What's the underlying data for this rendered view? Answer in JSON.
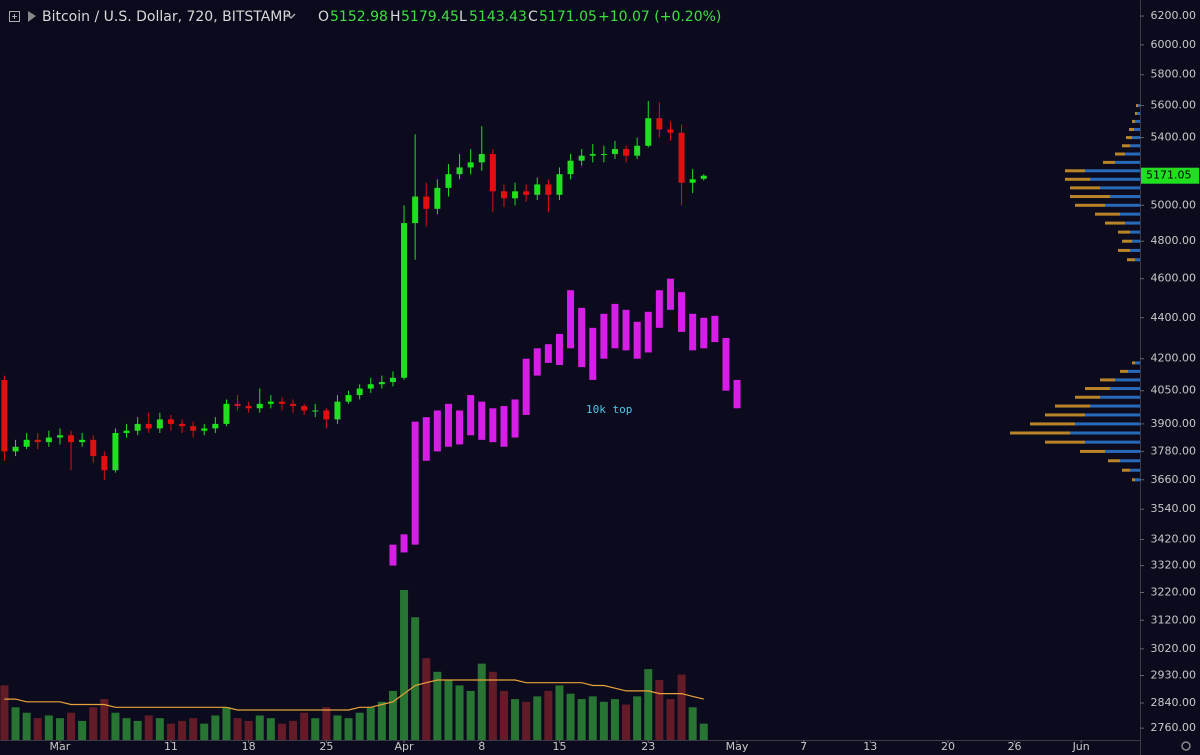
{
  "chart_data": {
    "type": "candlestick",
    "title": "Bitcoin / U.S. Dollar, 720, BITSTAMP",
    "ohlc_labels": [
      "O",
      "H",
      "L",
      "C"
    ],
    "change": "+10.07 (+0.20%)",
    "annotations": [
      "10k top"
    ],
    "log": true,
    "xlim": [
      -5.4,
      97.3
    ],
    "ylim": [
      2723,
      6314
    ],
    "xticks": [
      {
        "value": 0,
        "label": "Mar"
      },
      {
        "value": 10,
        "label": "11"
      },
      {
        "value": 17,
        "label": "18"
      },
      {
        "value": 24,
        "label": "25"
      },
      {
        "value": 31,
        "label": "Apr"
      },
      {
        "value": 38,
        "label": "8"
      },
      {
        "value": 45,
        "label": "15"
      },
      {
        "value": 53,
        "label": "23"
      },
      {
        "value": 61,
        "label": "May"
      },
      {
        "value": 67,
        "label": "7"
      },
      {
        "value": 73,
        "label": "13"
      },
      {
        "value": 80,
        "label": "20"
      },
      {
        "value": 86,
        "label": "26"
      },
      {
        "value": 92,
        "label": "Jun"
      }
    ],
    "yticks": [
      {
        "value": 6200,
        "label": "6200.00"
      },
      {
        "value": 6000,
        "label": "6000.00"
      },
      {
        "value": 5800,
        "label": "5800.00"
      },
      {
        "value": 5600,
        "label": "5600.00"
      },
      {
        "value": 5400,
        "label": "5400.00"
      },
      {
        "value": 5000,
        "label": "5000.00"
      },
      {
        "value": 4800,
        "label": "4800.00"
      },
      {
        "value": 4600,
        "label": "4600.00"
      },
      {
        "value": 4400,
        "label": "4400.00"
      },
      {
        "value": 4200,
        "label": "4200.00"
      },
      {
        "value": 4050,
        "label": "4050.00"
      },
      {
        "value": 3900,
        "label": "3900.00"
      },
      {
        "value": 3780,
        "label": "3780.00"
      },
      {
        "value": 3660,
        "label": "3660.00"
      },
      {
        "value": 3540,
        "label": "3540.00"
      },
      {
        "value": 3420,
        "label": "3420.00"
      },
      {
        "value": 3320,
        "label": "3320.00"
      },
      {
        "value": 3220,
        "label": "3220.00"
      },
      {
        "value": 3120,
        "label": "3120.00"
      },
      {
        "value": 3020,
        "label": "3020.00"
      },
      {
        "value": 2930,
        "label": "2930.00"
      },
      {
        "value": 2840,
        "label": "2840.00"
      },
      {
        "value": 2760,
        "label": "2760.00"
      }
    ],
    "candles": {
      "up_color": "#1fe01f",
      "down_color": "#e01010",
      "x": [
        -5,
        -4,
        -3,
        -2,
        -1,
        0,
        1,
        2,
        3,
        4,
        5,
        6,
        7,
        8,
        9,
        10,
        11,
        12,
        13,
        14,
        15,
        16,
        17,
        18,
        19,
        20,
        21,
        22,
        23,
        24,
        25,
        26,
        27,
        28,
        29,
        30,
        31,
        32,
        33,
        34,
        35,
        36,
        37,
        38,
        39,
        40,
        41,
        42,
        43,
        44,
        45,
        46,
        47,
        48,
        49,
        50,
        51,
        52,
        53,
        54,
        55,
        56,
        57,
        58
      ],
      "open": [
        4100,
        3780,
        3800,
        3830,
        3820,
        3840,
        3850,
        3820,
        3830,
        3760,
        3700,
        3860,
        3870,
        3900,
        3880,
        3920,
        3900,
        3890,
        3870,
        3880,
        3900,
        3990,
        3980,
        3970,
        3990,
        4000,
        3990,
        3980,
        3960,
        3960,
        3920,
        4000,
        4030,
        4060,
        4080,
        4090,
        4110,
        4900,
        5050,
        4980,
        5100,
        5180,
        5220,
        5250,
        5300,
        5080,
        5040,
        5080,
        5060,
        5120,
        5060,
        5180,
        5260,
        5290,
        5300,
        5300,
        5330,
        5290,
        5350,
        5520,
        5450,
        5430,
        5130,
        5152.98
      ],
      "high": [
        4120,
        3830,
        3860,
        3860,
        3870,
        3880,
        3870,
        3860,
        3850,
        3780,
        3880,
        3900,
        3930,
        3950,
        3950,
        3940,
        3920,
        3910,
        3900,
        3930,
        4010,
        4030,
        4000,
        4060,
        4030,
        4020,
        4010,
        3990,
        3990,
        3970,
        4030,
        4050,
        4080,
        4110,
        4120,
        4140,
        5000,
        5420,
        5130,
        5150,
        5240,
        5300,
        5330,
        5470,
        5330,
        5120,
        5130,
        5120,
        5160,
        5150,
        5220,
        5300,
        5330,
        5360,
        5350,
        5380,
        5350,
        5400,
        5630,
        5620,
        5500,
        5480,
        5210,
        5179.45
      ],
      "low": [
        3740,
        3760,
        3790,
        3790,
        3800,
        3810,
        3700,
        3800,
        3730,
        3660,
        3690,
        3840,
        3850,
        3860,
        3860,
        3870,
        3860,
        3840,
        3850,
        3860,
        3890,
        3960,
        3950,
        3950,
        3970,
        3960,
        3950,
        3940,
        3930,
        3880,
        3900,
        3990,
        4010,
        4040,
        4060,
        4070,
        4100,
        4700,
        4880,
        4950,
        5050,
        5150,
        5180,
        5200,
        4960,
        4990,
        5000,
        5020,
        5030,
        4960,
        5030,
        5150,
        5230,
        5250,
        5250,
        5270,
        5250,
        5270,
        5340,
        5400,
        5380,
        5000,
        5070,
        5143.43
      ],
      "close": [
        3780,
        3800,
        3830,
        3820,
        3840,
        3850,
        3820,
        3830,
        3760,
        3700,
        3860,
        3870,
        3900,
        3880,
        3920,
        3900,
        3890,
        3870,
        3880,
        3900,
        3990,
        3980,
        3970,
        3990,
        4000,
        3990,
        3980,
        3960,
        3960,
        3920,
        4000,
        4030,
        4060,
        4080,
        4090,
        4110,
        4900,
        5050,
        4980,
        5100,
        5180,
        5220,
        5250,
        5300,
        5080,
        5040,
        5080,
        5060,
        5120,
        5060,
        5180,
        5260,
        5290,
        5300,
        5300,
        5330,
        5290,
        5350,
        5520,
        5450,
        5430,
        5130,
        5150,
        5171.05
      ]
    },
    "overlay": {
      "color": "#d61ee6",
      "x": [
        30,
        31,
        32,
        33,
        34,
        35,
        36,
        37,
        38,
        39,
        40,
        41,
        42,
        43,
        44,
        45,
        46,
        47,
        48,
        49,
        50,
        51,
        52,
        53,
        54,
        55,
        56,
        57,
        58,
        59,
        60,
        61
      ],
      "high": [
        3400,
        3440,
        3910,
        3930,
        3960,
        3990,
        3960,
        4030,
        4000,
        3970,
        3980,
        4010,
        4200,
        4250,
        4270,
        4320,
        4540,
        4450,
        4350,
        4420,
        4470,
        4440,
        4380,
        4430,
        4540,
        4600,
        4530,
        4420,
        4400,
        4410,
        4300,
        4100
      ],
      "low": [
        3320,
        3370,
        3400,
        3740,
        3780,
        3800,
        3810,
        3850,
        3830,
        3820,
        3800,
        3840,
        3940,
        4120,
        4180,
        4170,
        4250,
        4160,
        4100,
        4200,
        4250,
        4240,
        4200,
        4230,
        4350,
        4440,
        4330,
        4240,
        4250,
        4280,
        4050,
        3970
      ]
    },
    "volume": {
      "up_color": "#2f8f3a",
      "down_color": "#7a1f2c",
      "ma_color": "#e8a23a",
      "values": [
        20,
        12,
        10,
        8,
        9,
        8,
        10,
        7,
        12,
        15,
        10,
        8,
        7,
        9,
        8,
        6,
        7,
        8,
        6,
        9,
        12,
        8,
        7,
        9,
        8,
        6,
        7,
        10,
        8,
        12,
        9,
        8,
        10,
        12,
        14,
        18,
        55,
        45,
        30,
        25,
        22,
        20,
        18,
        28,
        25,
        18,
        15,
        14,
        16,
        18,
        20,
        17,
        15,
        16,
        14,
        15,
        13,
        16,
        26,
        22,
        15,
        24,
        12,
        6
      ],
      "ma": [
        15,
        15,
        14,
        14,
        14,
        14,
        13,
        13,
        13,
        13,
        12,
        12,
        12,
        12,
        12,
        12,
        12,
        12,
        12,
        12,
        12,
        11,
        11,
        11,
        11,
        11,
        11,
        11,
        11,
        11,
        11,
        11,
        12,
        12,
        13,
        14,
        17,
        20,
        21,
        22,
        22,
        22,
        22,
        22,
        22,
        22,
        22,
        21,
        21,
        21,
        21,
        21,
        21,
        20,
        20,
        19,
        18,
        18,
        18,
        17,
        17,
        17,
        16,
        15
      ]
    },
    "volume_profile": {
      "up_color": "#2e7bd6",
      "down_color": "#d89b2a",
      "prices": [
        3660,
        3700,
        3740,
        3780,
        3820,
        3860,
        3900,
        3940,
        3980,
        4020,
        4060,
        4100,
        4140,
        4180,
        4700,
        4750,
        4800,
        4850,
        4900,
        4950,
        5000,
        5050,
        5100,
        5150,
        5200,
        5250,
        5300,
        5350,
        5400,
        5450,
        5500,
        5550,
        5600
      ],
      "up": [
        5,
        10,
        20,
        35,
        55,
        70,
        65,
        55,
        50,
        40,
        30,
        25,
        12,
        5,
        5,
        10,
        8,
        10,
        15,
        20,
        35,
        30,
        40,
        50,
        55,
        25,
        15,
        10,
        8,
        6,
        5,
        3,
        2
      ],
      "down": [
        3,
        8,
        12,
        25,
        40,
        60,
        45,
        40,
        35,
        25,
        25,
        15,
        8,
        3,
        8,
        12,
        10,
        12,
        20,
        25,
        30,
        40,
        30,
        25,
        20,
        12,
        10,
        8,
        6,
        5,
        3,
        2,
        2
      ]
    }
  }
}
